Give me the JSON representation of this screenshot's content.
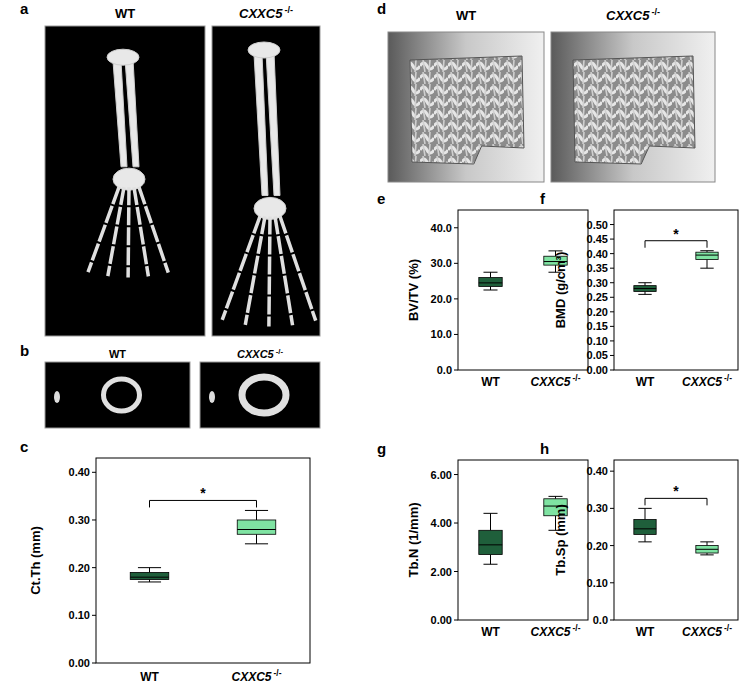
{
  "images": [
    {
      "title": "a",
      "labels": [
        "WT",
        "CXXC5 -/-"
      ]
    },
    {
      "title": "b",
      "labels": [
        "WT",
        "CXXC5 -/-"
      ]
    },
    {
      "title": "d",
      "labels": [
        "WT",
        "CXXC5 -/-"
      ]
    }
  ],
  "chart_data": [
    {
      "type": "box",
      "title": "c",
      "y_label": "Ct.Th (mm)",
      "categories": [
        "WT",
        "CXXC5 -/-"
      ],
      "colors": [
        "#1f5f3b",
        "#7fe3a2"
      ],
      "boxes": [
        {
          "min": 0.17,
          "q1": 0.175,
          "median": 0.18,
          "q3": 0.19,
          "max": 0.2
        },
        {
          "min": 0.25,
          "q1": 0.27,
          "median": 0.28,
          "q3": 0.3,
          "max": 0.32
        }
      ],
      "annotation": "*",
      "ylim": [
        0,
        0.43
      ],
      "yticks": [
        {
          "value": 0,
          "label": "0.00"
        },
        {
          "value": 0.1,
          "label": "0.10"
        },
        {
          "value": 0.2,
          "label": "0.20"
        },
        {
          "value": 0.3,
          "label": "0.30"
        },
        {
          "value": 0.4,
          "label": "0.40"
        }
      ]
    },
    {
      "type": "box",
      "title": "e",
      "y_label": "BV/TV (%)",
      "categories": [
        "WT",
        "CXXC5 -/-"
      ],
      "colors": [
        "#1f5f3b",
        "#7fe3a2"
      ],
      "boxes": [
        {
          "min": 22.5,
          "q1": 23.5,
          "median": 24.5,
          "q3": 26,
          "max": 27.5
        },
        {
          "min": 27.5,
          "q1": 29.5,
          "median": 30.5,
          "q3": 32,
          "max": 33.5
        }
      ],
      "ylim": [
        0,
        45
      ],
      "yticks": [
        {
          "value": 0,
          "label": "0.0"
        },
        {
          "value": 10,
          "label": "10.0"
        },
        {
          "value": 20,
          "label": "20.0"
        },
        {
          "value": 30,
          "label": "30.0"
        },
        {
          "value": 40,
          "label": "40.0"
        }
      ]
    },
    {
      "type": "box",
      "title": "f",
      "y_label": "BMD (g/cm³)",
      "categories": [
        "WT",
        "CXXC5 -/-"
      ],
      "colors": [
        "#1f5f3b",
        "#7fe3a2"
      ],
      "boxes": [
        {
          "min": 0.26,
          "q1": 0.27,
          "median": 0.28,
          "q3": 0.29,
          "max": 0.3
        },
        {
          "min": 0.35,
          "q1": 0.38,
          "median": 0.395,
          "q3": 0.405,
          "max": 0.41
        }
      ],
      "annotation": "*",
      "ylim": [
        0,
        0.55
      ],
      "yticks": [
        {
          "value": 0,
          "label": "0.00"
        },
        {
          "value": 0.05,
          "label": "0.05"
        },
        {
          "value": 0.1,
          "label": "0.10"
        },
        {
          "value": 0.15,
          "label": "0.15"
        },
        {
          "value": 0.2,
          "label": "0.20"
        },
        {
          "value": 0.25,
          "label": "0.25"
        },
        {
          "value": 0.3,
          "label": "0.30"
        },
        {
          "value": 0.35,
          "label": "0.35"
        },
        {
          "value": 0.4,
          "label": "0.40"
        },
        {
          "value": 0.45,
          "label": "0.45"
        },
        {
          "value": 0.5,
          "label": "0.50"
        }
      ]
    },
    {
      "type": "box",
      "title": "g",
      "y_label": "Tb.N (1/mm)",
      "categories": [
        "WT",
        "CXXC5 -/-"
      ],
      "colors": [
        "#1f5f3b",
        "#7fe3a2"
      ],
      "boxes": [
        {
          "min": 2.3,
          "q1": 2.7,
          "median": 3.1,
          "q3": 3.7,
          "max": 4.4
        },
        {
          "min": 3.7,
          "q1": 4.3,
          "median": 4.7,
          "q3": 5.0,
          "max": 5.1
        }
      ],
      "ylim": [
        0,
        6.6
      ],
      "yticks": [
        {
          "value": 0,
          "label": "0.00"
        },
        {
          "value": 2,
          "label": "2.00"
        },
        {
          "value": 4,
          "label": "4.00"
        },
        {
          "value": 6,
          "label": "6.00"
        }
      ]
    },
    {
      "type": "box",
      "title": "h",
      "y_label": "Tb.Sp (mm)",
      "categories": [
        "WT",
        "CXXC5 -/-"
      ],
      "colors": [
        "#1f5f3b",
        "#7fe3a2"
      ],
      "boxes": [
        {
          "min": 0.21,
          "q1": 0.23,
          "median": 0.245,
          "q3": 0.27,
          "max": 0.3
        },
        {
          "min": 0.175,
          "q1": 0.18,
          "median": 0.19,
          "q3": 0.2,
          "max": 0.21
        }
      ],
      "annotation": "*",
      "ylim": [
        0,
        0.43
      ],
      "yticks": [
        {
          "value": 0,
          "label": "0.0"
        },
        {
          "value": 0.1,
          "label": "0.10"
        },
        {
          "value": 0.2,
          "label": "0.20"
        },
        {
          "value": 0.3,
          "label": "0.30"
        },
        {
          "value": 0.4,
          "label": "0.40"
        }
      ]
    }
  ]
}
